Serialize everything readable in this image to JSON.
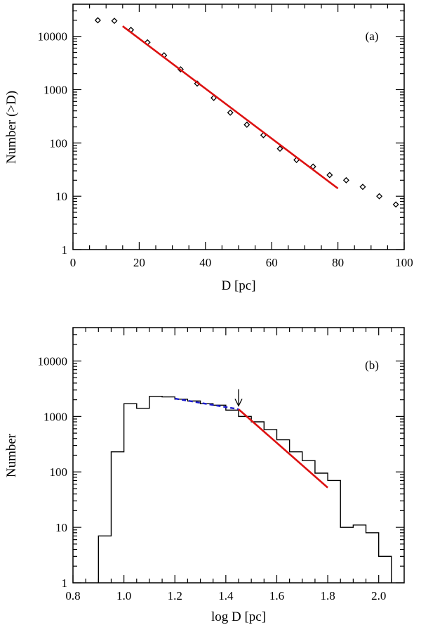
{
  "figure": {
    "colors": {
      "axes": "#000000",
      "fit_red": "#dd1111",
      "fit_blue": "#1a1acc",
      "histogram": "#000000"
    }
  },
  "chart_data": [
    {
      "id": "a",
      "type": "scatter",
      "panel_label": "(a)",
      "xlabel": "D [pc]",
      "ylabel": "Number (>D)",
      "xlim": [
        0,
        100
      ],
      "ylim_log": [
        1,
        40000
      ],
      "yscale": "log",
      "x_ticks": [
        0,
        20,
        40,
        60,
        80,
        100
      ],
      "x_tick_labels": [
        "0",
        "20",
        "40",
        "60",
        "80",
        "100"
      ],
      "y_ticks": [
        1,
        10,
        100,
        1000,
        10000
      ],
      "y_tick_labels": [
        "1",
        "10",
        "100",
        "1000",
        "10000"
      ],
      "points": {
        "x": [
          7.5,
          12.5,
          17.5,
          22.5,
          27.5,
          32.5,
          37.5,
          42.5,
          47.5,
          52.5,
          57.5,
          62.5,
          67.5,
          72.5,
          77.5,
          82.5,
          87.5,
          92.5,
          97.5
        ],
        "y": [
          20000,
          19500,
          13200,
          7700,
          4400,
          2400,
          1300,
          700,
          370,
          220,
          140,
          78,
          48,
          36,
          25,
          20,
          15,
          10,
          7
        ]
      },
      "fit_line": {
        "x": [
          15,
          80
        ],
        "y": [
          15500,
          14
        ],
        "color": "#dd1111"
      }
    },
    {
      "id": "b",
      "type": "histogram",
      "panel_label": "(b)",
      "xlabel": "log D [pc]",
      "ylabel": "Number",
      "xlim": [
        0.8,
        2.1
      ],
      "ylim_log": [
        1,
        40000
      ],
      "yscale": "log",
      "x_ticks": [
        0.8,
        1.0,
        1.2,
        1.4,
        1.6,
        1.8,
        2.0
      ],
      "x_tick_labels": [
        "0.8",
        "1.0",
        "1.2",
        "1.4",
        "1.6",
        "1.8",
        "2.0"
      ],
      "y_ticks": [
        1,
        10,
        100,
        1000,
        10000
      ],
      "y_tick_labels": [
        "1",
        "10",
        "100",
        "1000",
        "10000"
      ],
      "bin_edges": [
        0.9,
        0.95,
        1.0,
        1.05,
        1.1,
        1.15,
        1.2,
        1.25,
        1.3,
        1.35,
        1.4,
        1.45,
        1.5,
        1.55,
        1.6,
        1.65,
        1.7,
        1.75,
        1.8,
        1.85,
        1.9,
        1.95,
        2.0,
        2.05
      ],
      "counts": [
        7,
        230,
        1700,
        1400,
        2300,
        2250,
        2050,
        1900,
        1700,
        1600,
        1300,
        1000,
        800,
        580,
        380,
        230,
        160,
        95,
        70,
        10,
        11,
        8,
        3
      ],
      "fit_red": {
        "x": [
          1.45,
          1.8
        ],
        "y": [
          1350,
          52
        ],
        "color": "#dd1111"
      },
      "fit_blue_dashed": {
        "x": [
          1.2,
          1.45
        ],
        "y": [
          2100,
          1350
        ],
        "color": "#1a1acc"
      },
      "arrow": {
        "x": 1.45,
        "y_from": 3100,
        "y_to": 1550
      }
    }
  ]
}
